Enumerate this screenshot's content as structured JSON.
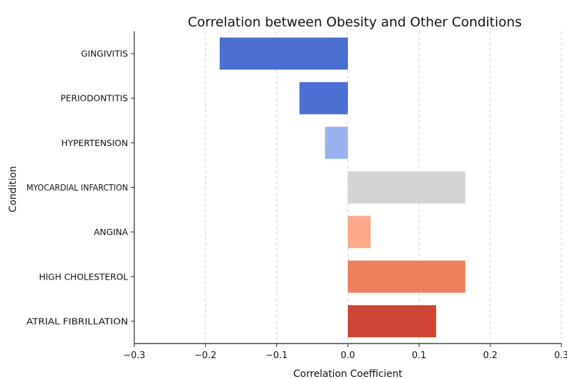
{
  "chart_data": {
    "type": "bar",
    "orientation": "horizontal",
    "title": "Correlation between Obesity and Other Conditions",
    "xlabel": "Correlation Coefficient",
    "ylabel": "Condition",
    "xlim": [
      -0.3,
      0.3
    ],
    "xticks": [
      "−0.3",
      "−0.2",
      "−0.1",
      "0.0",
      "0.1",
      "0.2",
      "0.3"
    ],
    "xtick_values": [
      -0.3,
      -0.2,
      -0.1,
      0.0,
      0.1,
      0.2,
      0.3
    ],
    "grid": "vertical-dashed",
    "categories": [
      "GINGIVITIS",
      "PERIODONTITIS",
      "HYPERTENSION",
      "MYOCARDIAL INFARCTION",
      "ANGINA",
      "HIGH CHOLESTEROL",
      "ATRIAL FIBRILLATION"
    ],
    "values": [
      -0.18,
      -0.068,
      -0.032,
      0.165,
      0.032,
      0.165,
      0.124
    ],
    "colors": [
      "#4a6fd2",
      "#4a6fd2",
      "#96b1ee",
      "#d4d4d4",
      "#fba98a",
      "#ee7f5c",
      "#cf4535"
    ]
  }
}
